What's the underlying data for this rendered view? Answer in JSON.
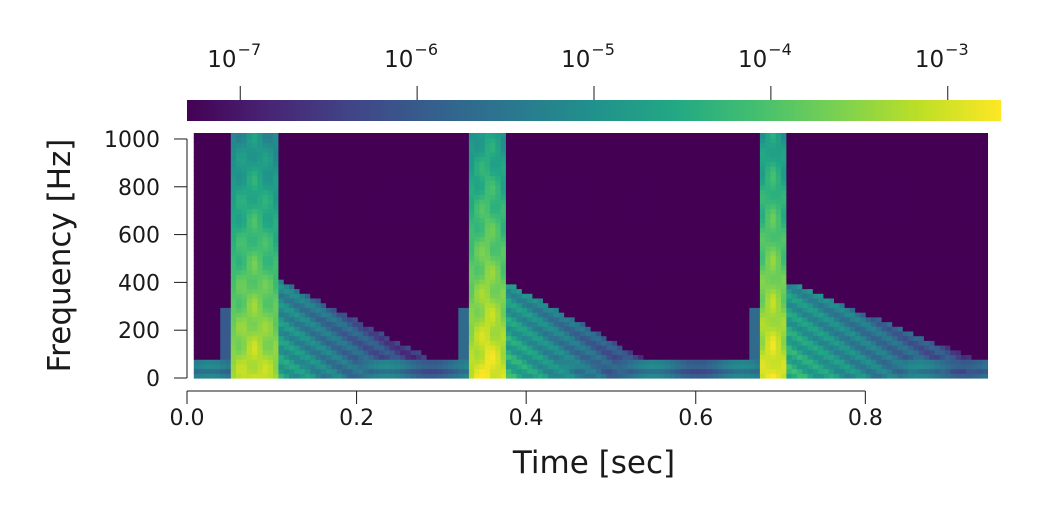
{
  "chart_data": {
    "type": "heatmap",
    "title": "",
    "xlabel": "Time [sec]",
    "ylabel": "Frequency [Hz]",
    "xlim": [
      0.0,
      0.96
    ],
    "ylim": [
      0,
      1025
    ],
    "data_extent_x": [
      0.008,
      0.944
    ],
    "data_extent_y": [
      0,
      1025
    ],
    "x_ticks": [
      0.0,
      0.2,
      0.4,
      0.6,
      0.8
    ],
    "x_tick_labels": [
      "0.0",
      "0.2",
      "0.4",
      "0.6",
      "0.8"
    ],
    "y_ticks": [
      0,
      200,
      400,
      600,
      800,
      1000
    ],
    "y_tick_labels": [
      "0",
      "200",
      "400",
      "600",
      "800",
      "1000"
    ],
    "colormap": "viridis",
    "color_scale": "log",
    "clim": [
      5e-08,
      0.002
    ],
    "colorbar": {
      "placement": "top",
      "ticks": [
        1e-07,
        1e-06,
        1e-05,
        0.0001,
        0.001
      ],
      "tick_base": "10",
      "tick_exponents": [
        "−7",
        "−6",
        "−5",
        "−4",
        "−3"
      ]
    },
    "background_value": 5e-08,
    "grid": false,
    "events": [
      {
        "t_start": 0.05,
        "t_end": 0.11,
        "peak_value": 0.001,
        "decay_end": 0.3
      },
      {
        "t_start": 0.335,
        "t_end": 0.375,
        "peak_value": 0.002,
        "decay_end": 0.55
      },
      {
        "t_start": 0.675,
        "t_end": 0.705,
        "peak_value": 0.002,
        "decay_end": 0.944
      }
    ],
    "low_frequency_band": {
      "f_max": 80,
      "value": 2e-06
    }
  }
}
